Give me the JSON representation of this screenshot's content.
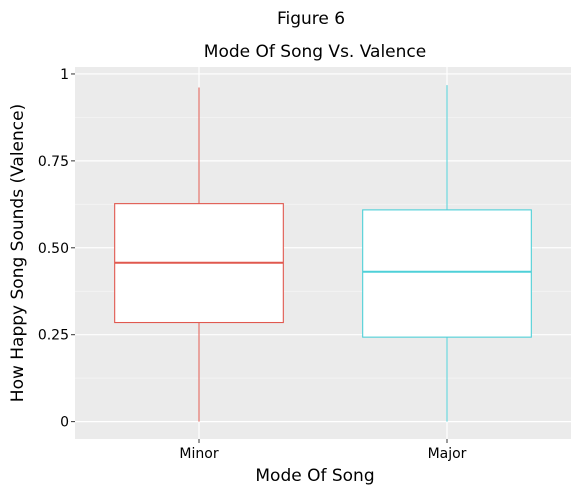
{
  "chart_data": {
    "type": "box",
    "figure_label": "Figure 6",
    "title": "Mode Of Song Vs. Valence",
    "xlabel": "Mode Of Song",
    "ylabel": "How Happy Song Sounds (Valence)",
    "ylim": [
      -0.05,
      1.02
    ],
    "y_ticks": [
      0,
      0.25,
      0.5,
      0.75,
      1
    ],
    "y_tick_labels": [
      "0",
      "0.25",
      "0.50",
      "0.75",
      "1"
    ],
    "grid": true,
    "categories": [
      "Minor",
      "Major"
    ],
    "boxes": [
      {
        "category": "Minor",
        "min": 0.0,
        "q1": 0.285,
        "median": 0.457,
        "q3": 0.627,
        "max": 0.961,
        "color": "#e0584f"
      },
      {
        "category": "Major",
        "min": 0.0,
        "q1": 0.243,
        "median": 0.431,
        "q3": 0.609,
        "max": 0.968,
        "color": "#4fd0d8"
      }
    ]
  },
  "colors": {
    "panel": "#ebebeb",
    "grid_major": "#ffffff",
    "grid_minor": "#f5f5f5",
    "box_fill": "#ffffff"
  }
}
